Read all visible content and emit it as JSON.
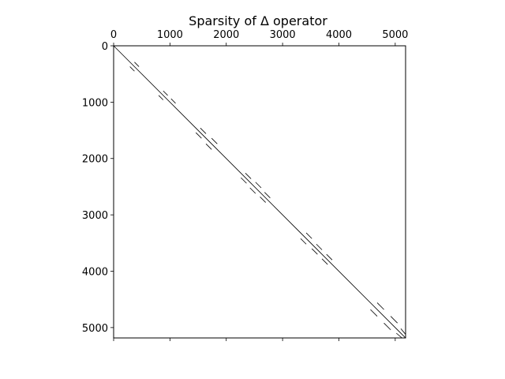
{
  "chart_data": {
    "type": "spy",
    "title": "Sparsity of Δ operator",
    "matrix_size": 5184,
    "xlim": [
      0,
      5184
    ],
    "ylim": [
      5184,
      0
    ],
    "x_ticks": [
      0,
      1000,
      2000,
      3000,
      4000,
      5000
    ],
    "y_ticks": [
      0,
      1000,
      2000,
      3000,
      4000,
      5000
    ],
    "x_tick_labels": [
      "0",
      "1000",
      "2000",
      "3000",
      "4000",
      "5000"
    ],
    "y_tick_labels": [
      "0",
      "1000",
      "2000",
      "3000",
      "4000",
      "5000"
    ],
    "x_axis_position": "top",
    "grid": false,
    "marker_color": "#000000",
    "diagonal": {
      "from": 0,
      "to": 5184
    },
    "off_diagonal_segments": [
      {
        "row_start": 290,
        "row_end": 370,
        "col_start": 370,
        "col_end": 450
      },
      {
        "row_start": 370,
        "row_end": 450,
        "col_start": 290,
        "col_end": 370
      },
      {
        "row_start": 800,
        "row_end": 880,
        "col_start": 880,
        "col_end": 960
      },
      {
        "row_start": 880,
        "row_end": 960,
        "col_start": 800,
        "col_end": 880
      },
      {
        "row_start": 940,
        "row_end": 1020,
        "col_start": 1020,
        "col_end": 1100
      },
      {
        "row_start": 1460,
        "row_end": 1560,
        "col_start": 1540,
        "col_end": 1640
      },
      {
        "row_start": 1540,
        "row_end": 1640,
        "col_start": 1460,
        "col_end": 1560
      },
      {
        "row_start": 1640,
        "row_end": 1740,
        "col_start": 1740,
        "col_end": 1840
      },
      {
        "row_start": 1740,
        "row_end": 1840,
        "col_start": 1640,
        "col_end": 1740
      },
      {
        "row_start": 2260,
        "row_end": 2360,
        "col_start": 2340,
        "col_end": 2440
      },
      {
        "row_start": 2340,
        "row_end": 2440,
        "col_start": 2260,
        "col_end": 2360
      },
      {
        "row_start": 2420,
        "row_end": 2520,
        "col_start": 2520,
        "col_end": 2620
      },
      {
        "row_start": 2520,
        "row_end": 2620,
        "col_start": 2420,
        "col_end": 2520
      },
      {
        "row_start": 2600,
        "row_end": 2700,
        "col_start": 2680,
        "col_end": 2780
      },
      {
        "row_start": 2680,
        "row_end": 2780,
        "col_start": 2600,
        "col_end": 2700
      },
      {
        "row_start": 3320,
        "row_end": 3420,
        "col_start": 3420,
        "col_end": 3520
      },
      {
        "row_start": 3420,
        "row_end": 3520,
        "col_start": 3320,
        "col_end": 3420
      },
      {
        "row_start": 3520,
        "row_end": 3620,
        "col_start": 3600,
        "col_end": 3700
      },
      {
        "row_start": 3600,
        "row_end": 3700,
        "col_start": 3520,
        "col_end": 3620
      },
      {
        "row_start": 3700,
        "row_end": 3800,
        "col_start": 3780,
        "col_end": 3880
      },
      {
        "row_start": 3780,
        "row_end": 3880,
        "col_start": 3700,
        "col_end": 3800
      },
      {
        "row_start": 4560,
        "row_end": 4680,
        "col_start": 4680,
        "col_end": 4800
      },
      {
        "row_start": 4680,
        "row_end": 4800,
        "col_start": 4560,
        "col_end": 4680
      },
      {
        "row_start": 4800,
        "row_end": 4920,
        "col_start": 4920,
        "col_end": 5040
      },
      {
        "row_start": 4920,
        "row_end": 5040,
        "col_start": 4800,
        "col_end": 4920
      },
      {
        "row_start": 5020,
        "row_end": 5120,
        "col_start": 5100,
        "col_end": 5184
      },
      {
        "row_start": 5100,
        "row_end": 5184,
        "col_start": 5020,
        "col_end": 5120
      }
    ]
  }
}
